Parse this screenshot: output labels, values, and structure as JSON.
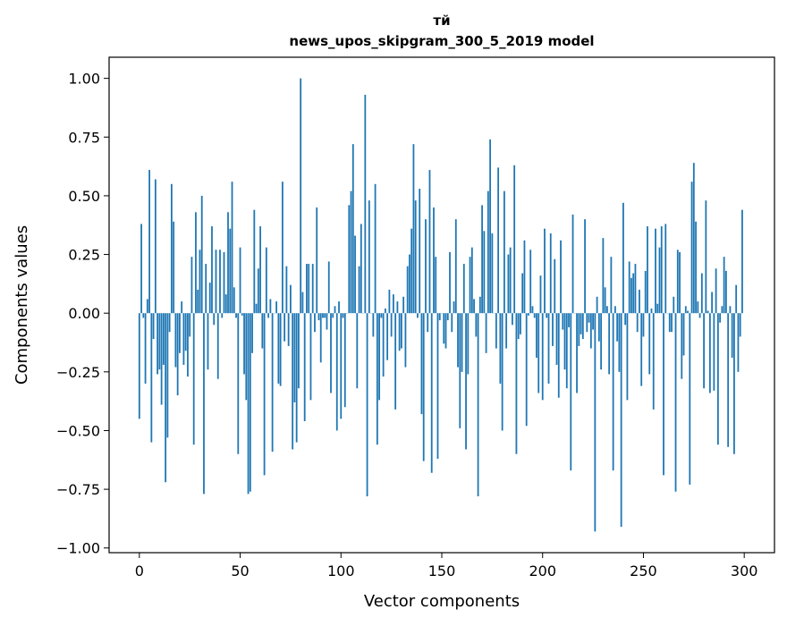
{
  "chart_data": {
    "type": "bar",
    "title_line1": "тй",
    "title_line2": "news_upos_skipgram_300_5_2019 model",
    "xlabel": "Vector components",
    "ylabel": "Components values",
    "xlim": [
      -15,
      315
    ],
    "ylim": [
      -1.02,
      1.09
    ],
    "xticks": [
      0,
      50,
      100,
      150,
      200,
      250,
      300
    ],
    "xtick_labels": [
      "0",
      "50",
      "100",
      "150",
      "200",
      "250",
      "300"
    ],
    "yticks": [
      -1.0,
      -0.75,
      -0.5,
      -0.25,
      0.0,
      0.25,
      0.5,
      0.75,
      1.0
    ],
    "ytick_labels": [
      "−1.00",
      "−0.75",
      "−0.50",
      "−0.25",
      "0.00",
      "0.25",
      "0.50",
      "0.75",
      "1.00"
    ],
    "grid": false,
    "bar_color": "#1f77b4",
    "values": [
      -0.45,
      0.38,
      -0.02,
      -0.3,
      0.06,
      0.61,
      -0.55,
      -0.11,
      0.57,
      -0.26,
      -0.24,
      -0.39,
      -0.22,
      -0.72,
      -0.53,
      -0.08,
      0.55,
      0.39,
      -0.23,
      -0.35,
      -0.17,
      0.05,
      -0.22,
      -0.16,
      -0.27,
      -0.1,
      0.24,
      -0.56,
      0.43,
      0.1,
      0.27,
      0.5,
      -0.77,
      0.21,
      -0.24,
      0.13,
      0.37,
      -0.05,
      0.27,
      -0.28,
      0.27,
      -0.02,
      0.26,
      0.08,
      0.43,
      0.36,
      0.56,
      0.11,
      -0.02,
      -0.6,
      0.28,
      -0.01,
      -0.26,
      -0.37,
      -0.77,
      -0.76,
      -0.17,
      0.44,
      0.04,
      0.19,
      0.37,
      -0.15,
      -0.69,
      0.28,
      -0.02,
      0.06,
      -0.59,
      0.0,
      0.05,
      -0.3,
      -0.31,
      0.56,
      -0.12,
      0.2,
      -0.14,
      0.12,
      -0.58,
      -0.38,
      -0.55,
      -0.32,
      1.0,
      0.09,
      -0.46,
      0.21,
      0.21,
      -0.37,
      0.21,
      -0.08,
      0.45,
      -0.03,
      -0.21,
      -0.02,
      -0.02,
      -0.07,
      0.22,
      -0.34,
      -0.02,
      0.03,
      -0.5,
      0.05,
      -0.45,
      -0.02,
      -0.4,
      0.0,
      0.46,
      0.52,
      0.72,
      0.33,
      -0.32,
      0.2,
      0.38,
      0.0,
      0.93,
      -0.78,
      0.48,
      0.0,
      -0.1,
      0.55,
      -0.56,
      -0.37,
      -0.02,
      -0.27,
      0.02,
      -0.2,
      0.1,
      -0.1,
      0.08,
      -0.41,
      0.05,
      -0.16,
      -0.15,
      0.07,
      -0.23,
      0.2,
      0.25,
      0.36,
      0.72,
      0.48,
      -0.02,
      0.53,
      -0.43,
      -0.63,
      0.4,
      -0.08,
      0.61,
      -0.68,
      0.45,
      0.24,
      -0.62,
      -0.03,
      0.0,
      -0.13,
      -0.15,
      -0.03,
      0.26,
      -0.08,
      0.05,
      0.4,
      -0.23,
      -0.49,
      -0.25,
      0.21,
      -0.58,
      -0.26,
      0.24,
      0.28,
      0.06,
      -0.1,
      -0.78,
      0.07,
      0.46,
      0.35,
      -0.17,
      0.52,
      0.74,
      0.34,
      0.0,
      -0.15,
      0.62,
      -0.3,
      -0.5,
      0.52,
      -0.15,
      0.25,
      0.28,
      -0.05,
      0.63,
      -0.6,
      -0.11,
      -0.09,
      0.17,
      0.31,
      -0.48,
      -0.01,
      0.27,
      0.03,
      -0.02,
      -0.19,
      -0.34,
      0.16,
      -0.37,
      0.36,
      -0.02,
      -0.3,
      0.34,
      -0.14,
      0.23,
      -0.22,
      -0.36,
      0.31,
      -0.07,
      -0.24,
      -0.32,
      -0.06,
      -0.67,
      0.42,
      0.0,
      -0.34,
      -0.14,
      -0.09,
      -0.11,
      0.4,
      -0.08,
      -0.04,
      -0.15,
      -0.07,
      -0.93,
      0.07,
      -0.12,
      -0.24,
      0.32,
      0.11,
      0.03,
      -0.26,
      0.24,
      -0.67,
      0.03,
      -0.12,
      -0.25,
      -0.91,
      0.47,
      -0.05,
      -0.37,
      0.22,
      0.15,
      0.17,
      0.21,
      -0.08,
      0.1,
      -0.31,
      -0.1,
      0.18,
      0.37,
      -0.26,
      0.02,
      -0.41,
      0.36,
      0.04,
      0.28,
      0.37,
      -0.69,
      0.38,
      0.0,
      -0.08,
      -0.08,
      0.07,
      -0.76,
      0.27,
      0.26,
      -0.28,
      -0.18,
      0.03,
      0.01,
      -0.73,
      0.56,
      0.64,
      0.39,
      0.05,
      -0.02,
      0.17,
      -0.32,
      0.48,
      0.01,
      -0.34,
      0.09,
      -0.33,
      0.19,
      -0.56,
      -0.04,
      0.03,
      0.24,
      0.18,
      -0.57,
      0.03,
      -0.19,
      -0.6,
      0.12,
      -0.25,
      -0.1,
      0.44
    ]
  }
}
